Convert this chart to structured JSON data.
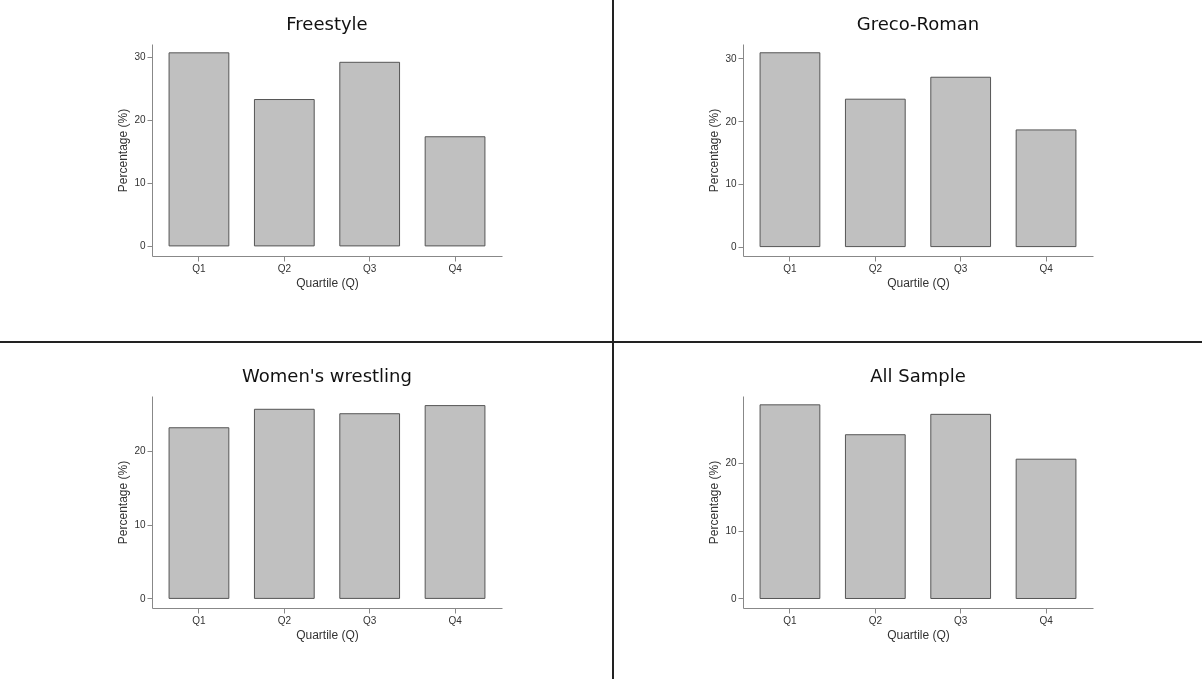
{
  "chart_data": [
    {
      "type": "bar",
      "title": "Freestyle",
      "xlabel": "Quartile (Q)",
      "ylabel": "Percentage (%)",
      "categories": [
        "Q1",
        "Q2",
        "Q3",
        "Q4"
      ],
      "values": [
        30.6,
        23.2,
        29.1,
        17.3
      ],
      "color": "#c0c0c0",
      "ylim": [
        -1.6,
        32
      ],
      "yticks": [
        0,
        10,
        20,
        30
      ]
    },
    {
      "type": "bar",
      "title": "Greco-Roman",
      "xlabel": "Quartile (Q)",
      "ylabel": "Percentage (%)",
      "categories": [
        "Q1",
        "Q2",
        "Q3",
        "Q4"
      ],
      "values": [
        30.9,
        23.5,
        27.0,
        18.6
      ],
      "color": "#c0c0c0",
      "ylim": [
        -1.5,
        32.3
      ],
      "yticks": [
        0,
        10,
        20,
        30
      ]
    },
    {
      "type": "bar",
      "title": "Women's wrestling",
      "xlabel": "Quartile (Q)",
      "ylabel": "Percentage (%)",
      "categories": [
        "Q1",
        "Q2",
        "Q3",
        "Q4"
      ],
      "values": [
        23.1,
        25.6,
        25.0,
        26.1
      ],
      "color": "#c0c0c0",
      "ylim": [
        -1.3,
        27.4
      ],
      "yticks": [
        0,
        10,
        20
      ]
    },
    {
      "type": "bar",
      "title": "All Sample",
      "xlabel": "Quartile (Q)",
      "ylabel": "Percentage (%)",
      "categories": [
        "Q1",
        "Q2",
        "Q3",
        "Q4"
      ],
      "values": [
        28.5,
        24.1,
        27.1,
        20.5
      ],
      "color": "#c0c0c0",
      "ylim": [
        -1.4,
        29.8
      ],
      "yticks": [
        0,
        10,
        20
      ]
    }
  ]
}
